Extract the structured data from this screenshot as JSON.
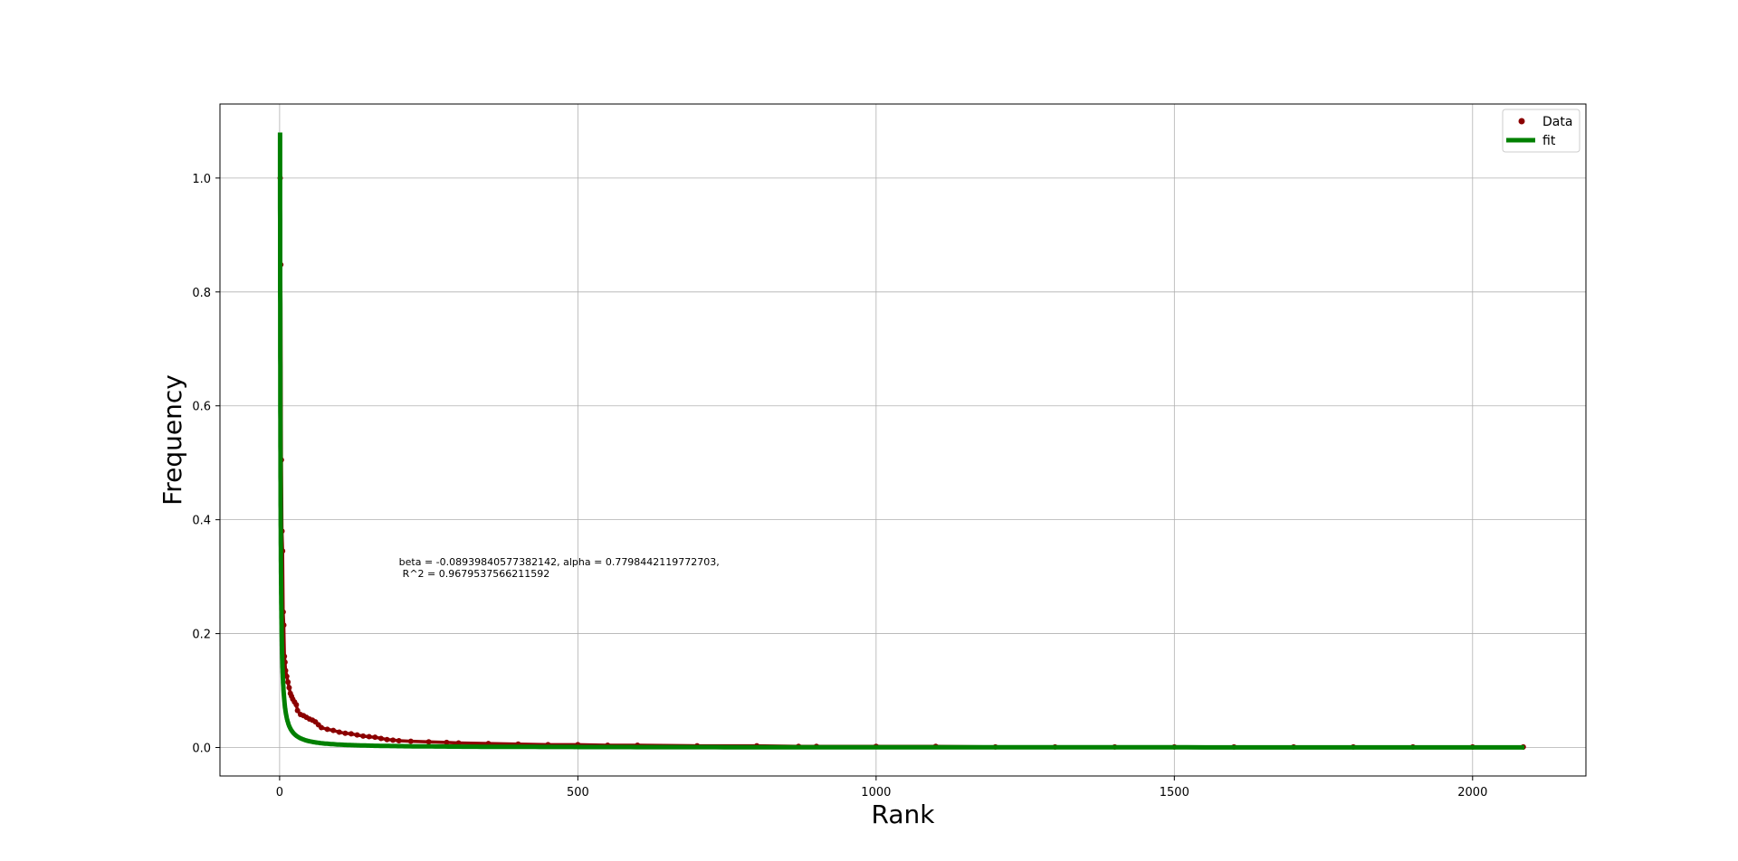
{
  "chart_data": {
    "type": "scatter",
    "title": "",
    "xlabel": "Rank",
    "ylabel": "Frequency",
    "xlim": [
      -100,
      2190
    ],
    "ylim": [
      -0.05,
      1.13
    ],
    "xticks": [
      0,
      500,
      1000,
      1500,
      2000
    ],
    "yticks": [
      0.0,
      0.2,
      0.4,
      0.6,
      0.8,
      1.0
    ],
    "xtick_labels": [
      "0",
      "500",
      "1000",
      "1500",
      "2000"
    ],
    "ytick_labels": [
      "0.0",
      "0.2",
      "0.4",
      "0.6",
      "0.8",
      "1.0"
    ],
    "grid": true,
    "legend_position": "top-right",
    "annotation": {
      "line1": "beta = -0.08939840577382142, alpha = 0.7798442119772703,",
      "line2": "R^2 = 0.9679537566211592",
      "x": 200,
      "y": 0.32
    },
    "series": [
      {
        "name": "Data",
        "kind": "points",
        "color": "#8b0000",
        "x": [
          1,
          2,
          3,
          4,
          5,
          6,
          7,
          8,
          9,
          10,
          12,
          14,
          16,
          18,
          20,
          22,
          25,
          28,
          30,
          35,
          40,
          45,
          50,
          55,
          60,
          65,
          70,
          80,
          90,
          100,
          110,
          120,
          130,
          140,
          150,
          160,
          170,
          180,
          190,
          200,
          220,
          250,
          280,
          300,
          350,
          400,
          450,
          500,
          550,
          600,
          700,
          800,
          870,
          900,
          1000,
          1100,
          1200,
          1300,
          1400,
          1500,
          1600,
          1700,
          1800,
          1900,
          2000,
          2085
        ],
        "y": [
          1.0,
          0.848,
          0.505,
          0.38,
          0.345,
          0.238,
          0.215,
          0.16,
          0.15,
          0.135,
          0.125,
          0.115,
          0.105,
          0.095,
          0.09,
          0.085,
          0.08,
          0.075,
          0.065,
          0.058,
          0.056,
          0.053,
          0.05,
          0.048,
          0.045,
          0.04,
          0.035,
          0.032,
          0.03,
          0.027,
          0.025,
          0.024,
          0.022,
          0.02,
          0.019,
          0.018,
          0.016,
          0.014,
          0.013,
          0.012,
          0.011,
          0.01,
          0.009,
          0.008,
          0.007,
          0.006,
          0.005,
          0.005,
          0.004,
          0.004,
          0.003,
          0.003,
          0.002,
          0.002,
          0.002,
          0.002,
          0.001,
          0.001,
          0.001,
          0.001,
          0.001,
          0.001,
          0.001,
          0.001,
          0.001,
          0.001
        ]
      },
      {
        "name": "fit",
        "kind": "line",
        "color": "#008000",
        "function": "alpha * x^beta_inv",
        "beta": -0.08939840577382142,
        "alpha": 0.7798442119772703
      }
    ]
  }
}
